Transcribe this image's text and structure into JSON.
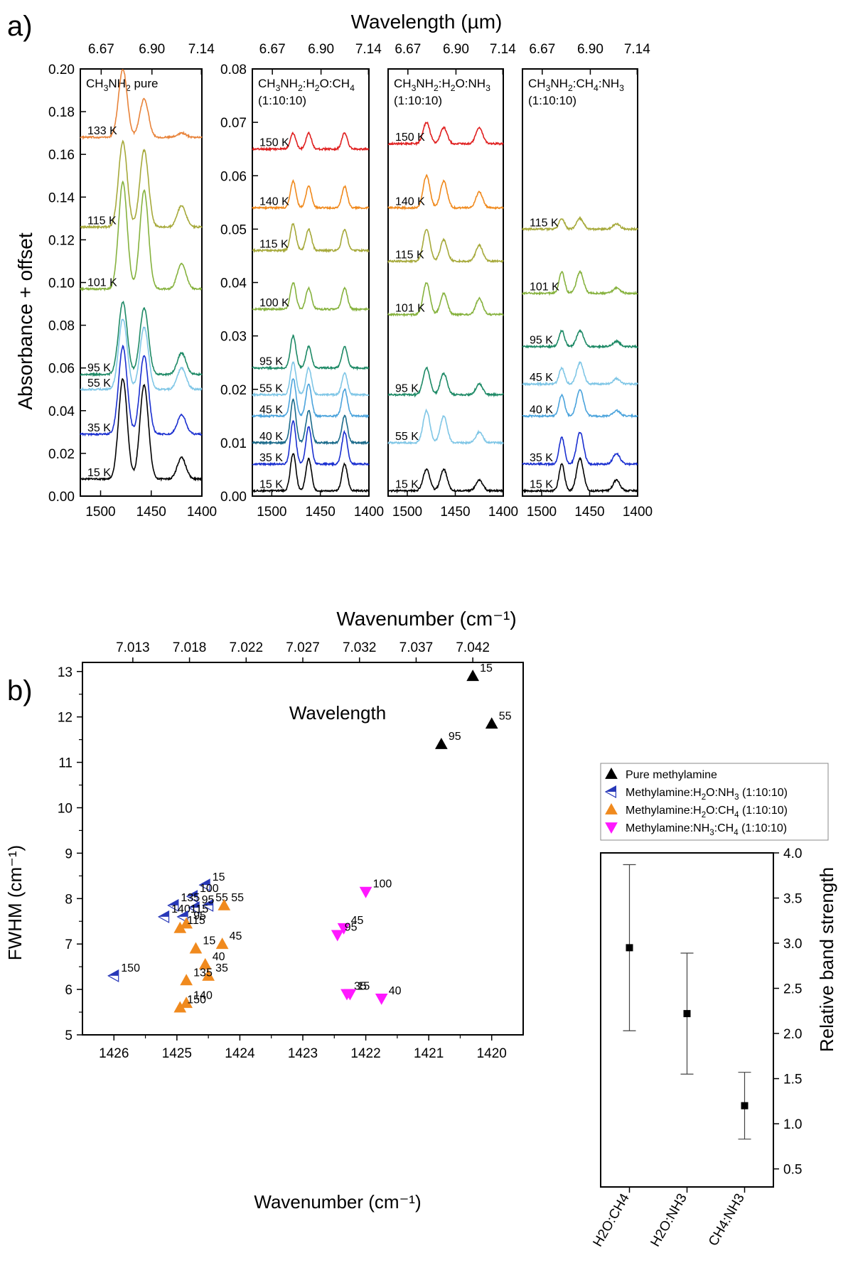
{
  "panel_labels": {
    "a": "a)",
    "b": "b)"
  },
  "chart_data": [
    {
      "type": "line",
      "title": "Wavelength (µm)",
      "xlabel": "Wavenumber (cm⁻¹)",
      "ylabel": "Absorbance + offset",
      "xlim": [
        1520,
        1400
      ],
      "x_ticks": [
        1500,
        1450,
        1400
      ],
      "top_ticks": [
        "6.67",
        "6.90",
        "7.14"
      ],
      "subpanels": [
        {
          "label": "CH₃NH₂ pure",
          "ylim": [
            0,
            0.2
          ],
          "y_ticks": [
            "0.00",
            "0.02",
            "0.04",
            "0.06",
            "0.08",
            "0.10",
            "0.12",
            "0.14",
            "0.16",
            "0.18",
            "0.20"
          ],
          "peaks": [
            {
              "center": 1478,
              "width": 6
            },
            {
              "center": 1457,
              "width": 6
            },
            {
              "center": 1420,
              "width": 6
            }
          ],
          "series": [
            {
              "name": "133 K",
              "baseline": 0.168,
              "amps": [
                0.032,
                0.018,
                0.002
              ],
              "color": "#e8833a"
            },
            {
              "name": "115 K",
              "baseline": 0.126,
              "amps": [
                0.04,
                0.036,
                0.01
              ],
              "color": "#a6a93a"
            },
            {
              "name": "101 K",
              "baseline": 0.097,
              "amps": [
                0.05,
                0.046,
                0.012
              ],
              "color": "#86b23e"
            },
            {
              "name": "95 K",
              "baseline": 0.057,
              "amps": [
                0.034,
                0.031,
                0.01
              ],
              "color": "#1e8a66"
            },
            {
              "name": "55 K",
              "baseline": 0.05,
              "amps": [
                0.033,
                0.029,
                0.01
              ],
              "color": "#7fc6e6"
            },
            {
              "name": "35 K",
              "baseline": 0.029,
              "amps": [
                0.041,
                0.037,
                0.009
              ],
              "color": "#1a2fd0"
            },
            {
              "name": "15 K",
              "baseline": 0.008,
              "amps": [
                0.047,
                0.044,
                0.01
              ],
              "color": "#000000"
            }
          ]
        },
        {
          "label": "CH₃NH₂:H₂O:CH₄",
          "ratio": "(1:10:10)",
          "ylim": [
            0,
            0.08
          ],
          "y_ticks": [
            "0.00",
            "0.01",
            "0.02",
            "0.03",
            "0.04",
            "0.05",
            "0.06",
            "0.07",
            "0.08"
          ],
          "peaks": [
            {
              "center": 1478,
              "width": 4
            },
            {
              "center": 1462,
              "width": 4
            },
            {
              "center": 1425,
              "width": 4
            }
          ],
          "series": [
            {
              "name": "150 K",
              "baseline": 0.065,
              "amps": [
                0.003,
                0.003,
                0.003
              ],
              "color": "#e02020"
            },
            {
              "name": "140 K",
              "baseline": 0.054,
              "amps": [
                0.005,
                0.004,
                0.004
              ],
              "color": "#f08a1e"
            },
            {
              "name": "115 K",
              "baseline": 0.046,
              "amps": [
                0.005,
                0.004,
                0.004
              ],
              "color": "#a6a93a"
            },
            {
              "name": "100 K",
              "baseline": 0.035,
              "amps": [
                0.005,
                0.004,
                0.004
              ],
              "color": "#86b23e"
            },
            {
              "name": "95 K",
              "baseline": 0.024,
              "amps": [
                0.006,
                0.004,
                0.004
              ],
              "color": "#1e8a66"
            },
            {
              "name": "55 K",
              "baseline": 0.019,
              "amps": [
                0.006,
                0.005,
                0.004
              ],
              "color": "#7fc6e6"
            },
            {
              "name": "45 K",
              "baseline": 0.015,
              "amps": [
                0.007,
                0.006,
                0.005
              ],
              "color": "#4aa3dc"
            },
            {
              "name": "40 K",
              "baseline": 0.01,
              "amps": [
                0.008,
                0.006,
                0.005
              ],
              "color": "#1a6a8a"
            },
            {
              "name": "35 K",
              "baseline": 0.006,
              "amps": [
                0.008,
                0.007,
                0.006
              ],
              "color": "#1a2fd0"
            },
            {
              "name": "15 K",
              "baseline": 0.001,
              "amps": [
                0.007,
                0.006,
                0.005
              ],
              "color": "#000000"
            }
          ]
        },
        {
          "label": "CH₃NH₂:H₂O:NH₃",
          "ratio": "(1:10:10)",
          "peaks": [
            {
              "center": 1480,
              "width": 5
            },
            {
              "center": 1462,
              "width": 5
            },
            {
              "center": 1425,
              "width": 5
            }
          ],
          "series": [
            {
              "name": "150 K",
              "baseline": 0.066,
              "amps": [
                0.004,
                0.003,
                0.003
              ],
              "color": "#e02020"
            },
            {
              "name": "140 K",
              "baseline": 0.054,
              "amps": [
                0.006,
                0.005,
                0.003
              ],
              "color": "#f08a1e"
            },
            {
              "name": "115 K",
              "baseline": 0.044,
              "amps": [
                0.006,
                0.004,
                0.003
              ],
              "color": "#a6a93a"
            },
            {
              "name": "101 K",
              "baseline": 0.034,
              "amps": [
                0.006,
                0.004,
                0.003
              ],
              "color": "#86b23e"
            },
            {
              "name": "95 K",
              "baseline": 0.019,
              "amps": [
                0.005,
                0.004,
                0.002
              ],
              "color": "#1e8a66"
            },
            {
              "name": "55 K",
              "baseline": 0.01,
              "amps": [
                0.006,
                0.005,
                0.002
              ],
              "color": "#7fc6e6"
            },
            {
              "name": "15 K",
              "baseline": 0.001,
              "amps": [
                0.004,
                0.004,
                0.002
              ],
              "color": "#000000"
            }
          ]
        },
        {
          "label": "CH₃NH₂:CH₄:NH₃",
          "ratio": "(1:10:10)",
          "peaks": [
            {
              "center": 1479,
              "width": 4
            },
            {
              "center": 1460,
              "width": 5
            },
            {
              "center": 1422,
              "width": 5
            }
          ],
          "series": [
            {
              "name": "115 K",
              "baseline": 0.05,
              "amps": [
                0.002,
                0.002,
                0.001
              ],
              "color": "#a6a93a"
            },
            {
              "name": "101 K",
              "baseline": 0.038,
              "amps": [
                0.004,
                0.004,
                0.001
              ],
              "color": "#86b23e"
            },
            {
              "name": "95 K",
              "baseline": 0.028,
              "amps": [
                0.003,
                0.003,
                0.001
              ],
              "color": "#1e8a66"
            },
            {
              "name": "45 K",
              "baseline": 0.021,
              "amps": [
                0.003,
                0.004,
                0.001
              ],
              "color": "#7fc6e6"
            },
            {
              "name": "40 K",
              "baseline": 0.015,
              "amps": [
                0.004,
                0.005,
                0.001
              ],
              "color": "#4aa3dc"
            },
            {
              "name": "35 K",
              "baseline": 0.006,
              "amps": [
                0.005,
                0.006,
                0.002
              ],
              "color": "#1a2fd0"
            },
            {
              "name": "15 K",
              "baseline": 0.001,
              "amps": [
                0.005,
                0.006,
                0.002
              ],
              "color": "#000000"
            }
          ]
        }
      ]
    },
    {
      "type": "scatter",
      "title": "Wavelength",
      "xlabel": "Wavenumber (cm⁻¹)",
      "ylabel": "FWHM (cm⁻¹)",
      "xlim": [
        1426.5,
        1419.5
      ],
      "ylim": [
        5,
        13.2
      ],
      "x_ticks": [
        1426,
        1425,
        1424,
        1423,
        1422,
        1421,
        1420
      ],
      "y_ticks": [
        5,
        6,
        7,
        8,
        9,
        10,
        11,
        12,
        13
      ],
      "top_ticks": [
        {
          "x": 1425.7,
          "label": "7.013"
        },
        {
          "x": 1424.8,
          "label": "7.018"
        },
        {
          "x": 1423.9,
          "label": "7.022"
        },
        {
          "x": 1423.0,
          "label": "7.027"
        },
        {
          "x": 1422.1,
          "label": "7.032"
        },
        {
          "x": 1421.2,
          "label": "7.037"
        },
        {
          "x": 1420.3,
          "label": "7.042"
        }
      ],
      "series": [
        {
          "name": "Pure methylamine",
          "marker": "triangle-up",
          "color": "#000000",
          "points": [
            {
              "x": 1420.3,
              "y": 12.9,
              "label": "15"
            },
            {
              "x": 1420.0,
              "y": 11.85,
              "label": "55"
            },
            {
              "x": 1420.8,
              "y": 11.4,
              "label": "95"
            }
          ]
        },
        {
          "name": "Methylamine:H₂O:NH₃ (1:10:10)",
          "marker": "triangle-left",
          "color": "#2838b8",
          "points": [
            {
              "x": 1424.55,
              "y": 8.3,
              "label": "15"
            },
            {
              "x": 1424.75,
              "y": 8.05,
              "label": "100"
            },
            {
              "x": 1424.5,
              "y": 7.85,
              "label": "55"
            },
            {
              "x": 1425.05,
              "y": 7.85,
              "label": "135"
            },
            {
              "x": 1424.72,
              "y": 7.8,
              "label": "95"
            },
            {
              "x": 1425.2,
              "y": 7.6,
              "label": "140"
            },
            {
              "x": 1424.9,
              "y": 7.6,
              "label": "115"
            },
            {
              "x": 1426.0,
              "y": 6.3,
              "label": "150"
            }
          ]
        },
        {
          "name": "Methylamine:H₂O:CH₄ (1:10:10)",
          "marker": "triangle-up",
          "color": "#f08a1e",
          "points": [
            {
              "x": 1424.25,
              "y": 7.85,
              "label": "55"
            },
            {
              "x": 1424.85,
              "y": 7.45,
              "label": "95"
            },
            {
              "x": 1424.95,
              "y": 7.35,
              "label": "115"
            },
            {
              "x": 1424.7,
              "y": 6.9,
              "label": "15"
            },
            {
              "x": 1424.28,
              "y": 7.0,
              "label": "45"
            },
            {
              "x": 1424.55,
              "y": 6.55,
              "label": "40"
            },
            {
              "x": 1424.5,
              "y": 6.3,
              "label": "35"
            },
            {
              "x": 1424.85,
              "y": 6.2,
              "label": "135"
            },
            {
              "x": 1424.85,
              "y": 5.7,
              "label": "140"
            },
            {
              "x": 1424.95,
              "y": 5.6,
              "label": "150"
            }
          ]
        },
        {
          "name": "Methylamine:NH₃:CH₄ (1:10:10)",
          "marker": "triangle-down",
          "color": "#ff18ff",
          "points": [
            {
              "x": 1422.0,
              "y": 8.15,
              "label": "100"
            },
            {
              "x": 1422.35,
              "y": 7.35,
              "label": "45"
            },
            {
              "x": 1422.45,
              "y": 7.2,
              "label": "95"
            },
            {
              "x": 1422.3,
              "y": 5.9,
              "label": "35"
            },
            {
              "x": 1422.25,
              "y": 5.9,
              "label": "15"
            },
            {
              "x": 1421.75,
              "y": 5.8,
              "label": "40"
            }
          ]
        }
      ]
    },
    {
      "type": "scatter",
      "ylabel": "Relative band strength",
      "categories": [
        "H2O:CH4",
        "H2O:NH3",
        "CH4:NH3"
      ],
      "values": [
        2.95,
        2.22,
        1.2
      ],
      "errors": [
        0.92,
        0.67,
        0.37
      ],
      "ylim": [
        0.3,
        4.0
      ],
      "y_ticks": [
        "0.5",
        "1.0",
        "1.5",
        "2.0",
        "2.5",
        "3.0",
        "3.5",
        "4.0"
      ]
    }
  ]
}
